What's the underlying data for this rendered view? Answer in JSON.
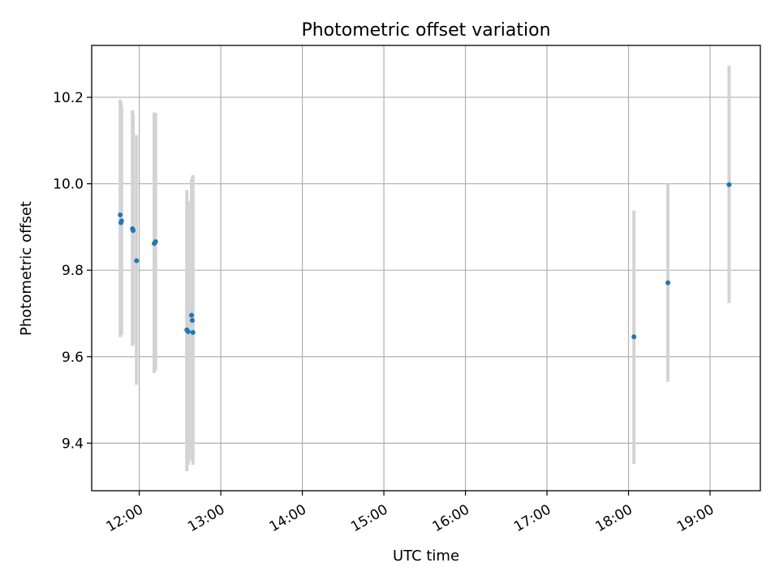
{
  "chart_data": {
    "type": "scatter",
    "title": "Photometric offset variation",
    "xlabel": "UTC time",
    "ylabel": "Photometric offset",
    "grid": true,
    "x_axis": {
      "type": "time",
      "range": [
        "11:25",
        "19:37"
      ],
      "ticks": [
        "12:00",
        "13:00",
        "14:00",
        "15:00",
        "16:00",
        "17:00",
        "18:00",
        "19:00"
      ]
    },
    "y_axis": {
      "range": [
        9.29,
        10.32
      ],
      "ticks": [
        9.4,
        9.6,
        9.8,
        10.0,
        10.2
      ],
      "tick_labels": [
        "9.4",
        "9.6",
        "9.8",
        "10.0",
        "10.2"
      ]
    },
    "colors": {
      "points": "#1f77b4",
      "error_bars": "#d3d3d3"
    },
    "points": [
      {
        "t": "11:46:00",
        "y": 9.928,
        "ylo": 9.645,
        "yhi": 10.195
      },
      {
        "t": "11:47:00",
        "y": 9.914,
        "ylo": 9.65,
        "yhi": 10.18
      },
      {
        "t": "11:46:30",
        "y": 9.91,
        "ylo": 9.66,
        "yhi": 10.19
      },
      {
        "t": "11:55:00",
        "y": 9.896,
        "ylo": 9.625,
        "yhi": 10.17
      },
      {
        "t": "11:55:30",
        "y": 9.892,
        "ylo": 9.63,
        "yhi": 10.16
      },
      {
        "t": "11:58:00",
        "y": 9.822,
        "ylo": 9.535,
        "yhi": 10.113
      },
      {
        "t": "12:11:00",
        "y": 9.862,
        "ylo": 9.562,
        "yhi": 10.165
      },
      {
        "t": "12:12:00",
        "y": 9.866,
        "ylo": 9.568,
        "yhi": 10.163
      },
      {
        "t": "12:35:00",
        "y": 9.662,
        "ylo": 9.335,
        "yhi": 9.985
      },
      {
        "t": "12:36:00",
        "y": 9.658,
        "ylo": 9.35,
        "yhi": 9.96
      },
      {
        "t": "12:38:30",
        "y": 9.696,
        "ylo": 9.36,
        "yhi": 10.01
      },
      {
        "t": "12:39:00",
        "y": 9.684,
        "ylo": 9.37,
        "yhi": 10.015
      },
      {
        "t": "12:39:30",
        "y": 9.656,
        "ylo": 9.35,
        "yhi": 10.02
      },
      {
        "t": "18:04:00",
        "y": 9.646,
        "ylo": 9.352,
        "yhi": 9.938
      },
      {
        "t": "18:29:00",
        "y": 9.771,
        "ylo": 9.542,
        "yhi": 10.0
      },
      {
        "t": "19:14:00",
        "y": 9.998,
        "ylo": 9.724,
        "yhi": 10.273
      }
    ]
  }
}
